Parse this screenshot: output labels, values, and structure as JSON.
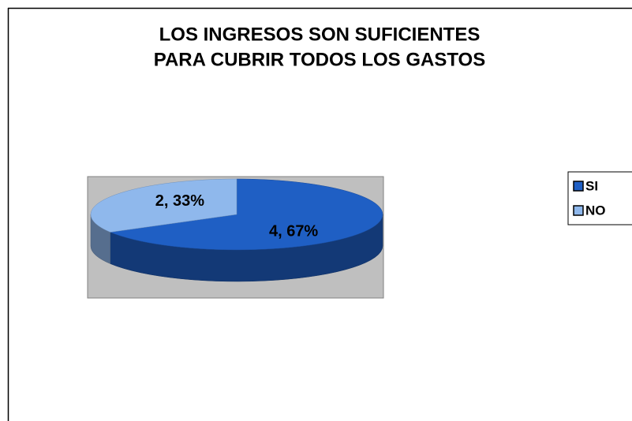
{
  "chart_data": {
    "type": "pie",
    "title": [
      "LOS INGRESOS SON SUFICIENTES",
      "PARA CUBRIR TODOS LOS GASTOS"
    ],
    "categories": [
      "SI",
      "NO"
    ],
    "values": [
      4,
      2
    ],
    "value_labels": [
      "4, 67%",
      "2, 33%"
    ],
    "colors": [
      "#1f5fc4",
      "#8fb8ec"
    ],
    "legend": "right"
  }
}
